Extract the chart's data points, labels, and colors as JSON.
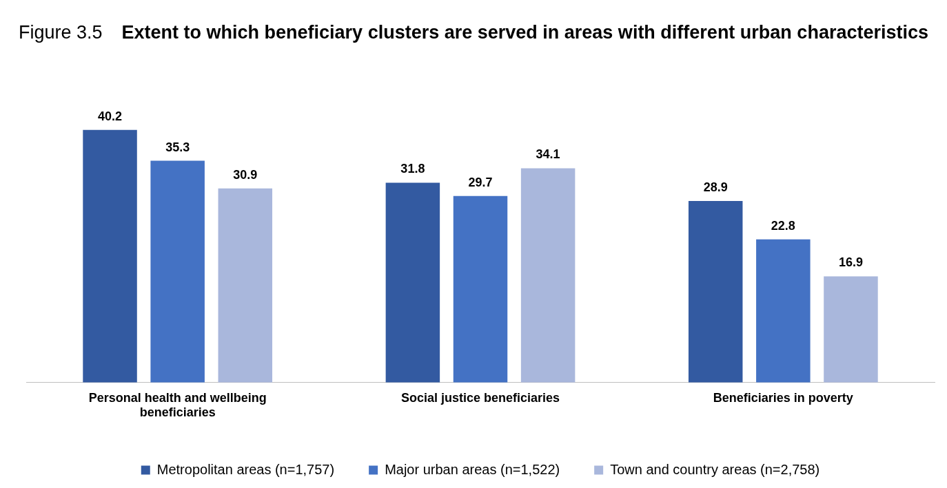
{
  "chart_data": {
    "type": "bar",
    "title": "Extent to which beneficiary clusters are served in areas with different urban characteristics",
    "annotations": [
      "Figure 3.5"
    ],
    "categories": [
      "Personal health and wellbeing beneficiaries",
      "Social justice beneficiaries",
      "Beneficiaries in poverty"
    ],
    "series": [
      {
        "name": "Metropolitan areas (n=1,757)",
        "color": "#335aa1",
        "values": [
          40.2,
          31.8,
          28.9
        ]
      },
      {
        "name": "Major urban areas (n=1,522)",
        "color": "#4472c4",
        "values": [
          35.3,
          29.7,
          22.8
        ]
      },
      {
        "name": "Town and country areas (n=2,758)",
        "color": "#a9b7dc",
        "values": [
          30.9,
          34.1,
          16.9
        ]
      }
    ],
    "data_labels": true,
    "grid": false,
    "legend": "bottom"
  }
}
